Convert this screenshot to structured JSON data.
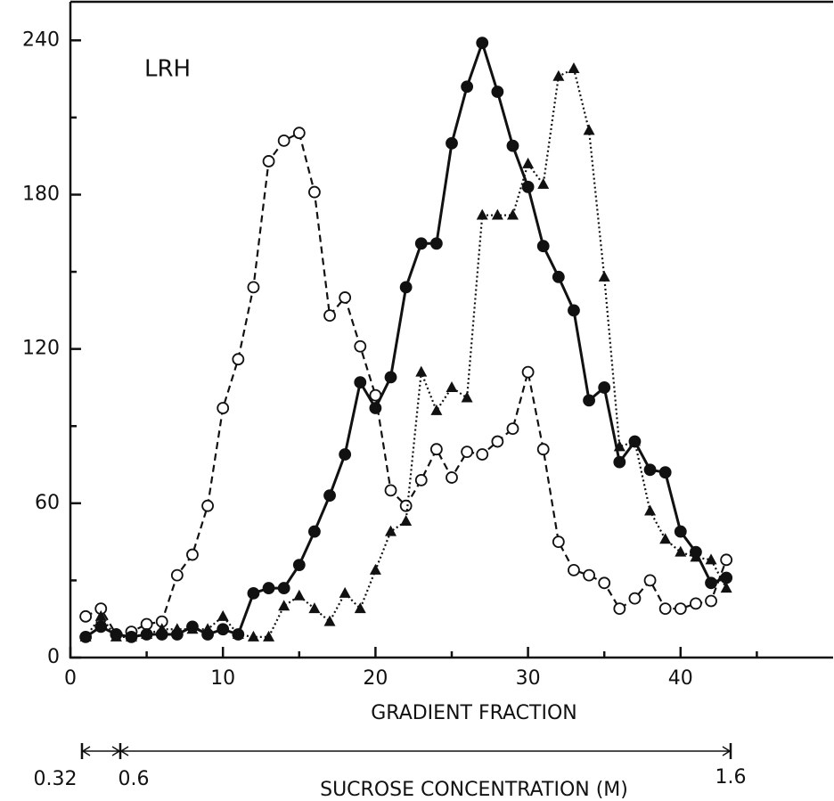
{
  "chart_data": {
    "type": "line",
    "annotation": "LRH",
    "x_label": "GRADIENT FRACTION",
    "secondary_scale": {
      "label": "SUCROSE CONCENTRATION (M)",
      "ticks": [
        "0.32",
        "0.6",
        "1.6"
      ]
    },
    "x": [
      1,
      2,
      3,
      4,
      5,
      6,
      7,
      8,
      9,
      10,
      11,
      12,
      13,
      14,
      15,
      16,
      17,
      18,
      19,
      20,
      21,
      22,
      23,
      24,
      25,
      26,
      27,
      28,
      29,
      30,
      31,
      32,
      33,
      34,
      35,
      36,
      37,
      38,
      39,
      40,
      41,
      42,
      43
    ],
    "series": [
      {
        "color": "#111",
        "marker": "open-circle",
        "dash": "dashed",
        "values": [
          16,
          19,
          9,
          10,
          13,
          14,
          32,
          40,
          59,
          97,
          116,
          144,
          193,
          201,
          204,
          181,
          133,
          140,
          121,
          102,
          65,
          59,
          69,
          81,
          70,
          80,
          79,
          84,
          89,
          111,
          81,
          45,
          34,
          32,
          29,
          19,
          23,
          30,
          19,
          19,
          21,
          22,
          38
        ]
      },
      {
        "color": "#111",
        "marker": "filled-circle",
        "dash": "solid",
        "values": [
          8,
          12,
          9,
          8,
          9,
          9,
          9,
          12,
          9,
          11,
          9,
          25,
          27,
          27,
          36,
          49,
          63,
          79,
          107,
          97,
          109,
          144,
          161,
          161,
          200,
          222,
          239,
          220,
          199,
          183,
          160,
          148,
          135,
          100,
          105,
          76,
          84,
          73,
          72,
          49,
          41,
          29,
          31
        ]
      },
      {
        "color": "#111",
        "marker": "filled-triangle",
        "dash": "dotted",
        "values": [
          8,
          16,
          8,
          8,
          9,
          11,
          11,
          11,
          11,
          16,
          9,
          8,
          8,
          20,
          24,
          19,
          14,
          25,
          19,
          34,
          49,
          53,
          111,
          96,
          105,
          101,
          172,
          172,
          172,
          192,
          184,
          226,
          229,
          205,
          148,
          82,
          84,
          57,
          46,
          41,
          39,
          38,
          27
        ]
      }
    ],
    "xlim": [
      0,
      50
    ],
    "xticks": [
      0,
      10,
      20,
      30,
      40
    ],
    "xminorticks": [
      5,
      15,
      25,
      35,
      45
    ],
    "ylim": [
      0,
      255
    ],
    "yticks": [
      0,
      60,
      120,
      180,
      240
    ],
    "yminorticks": [
      30,
      90,
      150,
      210
    ]
  }
}
